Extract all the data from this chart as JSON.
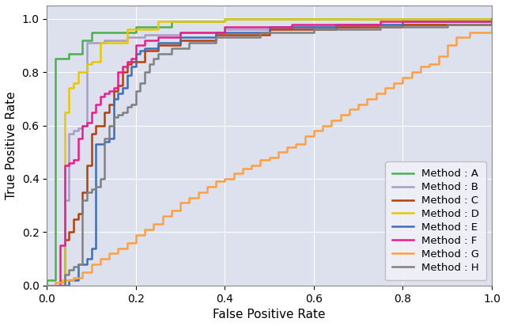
{
  "title": "",
  "xlabel": "False Positive Rate",
  "ylabel": "True Positive Rate",
  "xlim": [
    0.0,
    1.0
  ],
  "ylim": [
    0.0,
    1.05
  ],
  "background_color": "#dde1ee",
  "grid_color": "#ffffff",
  "methods": [
    {
      "label": "Method : A",
      "color": "#4CAF50",
      "linewidth": 1.8,
      "points": [
        [
          0.0,
          0.0
        ],
        [
          0.0,
          0.02
        ],
        [
          0.02,
          0.85
        ],
        [
          0.05,
          0.87
        ],
        [
          0.08,
          0.92
        ],
        [
          0.1,
          0.95
        ],
        [
          0.13,
          0.95
        ],
        [
          0.2,
          0.97
        ],
        [
          0.28,
          0.99
        ],
        [
          0.4,
          1.0
        ],
        [
          1.0,
          1.0
        ]
      ]
    },
    {
      "label": "Method : B",
      "color": "#A89CC8",
      "linewidth": 1.8,
      "points": [
        [
          0.0,
          0.0
        ],
        [
          0.04,
          0.32
        ],
        [
          0.05,
          0.57
        ],
        [
          0.06,
          0.58
        ],
        [
          0.07,
          0.59
        ],
        [
          0.08,
          0.6
        ],
        [
          0.09,
          0.91
        ],
        [
          0.1,
          0.91
        ],
        [
          0.13,
          0.92
        ],
        [
          0.18,
          0.93
        ],
        [
          0.22,
          0.94
        ],
        [
          0.3,
          0.95
        ],
        [
          0.4,
          0.96
        ],
        [
          0.55,
          0.97
        ],
        [
          0.7,
          0.98
        ],
        [
          1.0,
          1.0
        ]
      ]
    },
    {
      "label": "Method : C",
      "color": "#B5400A",
      "linewidth": 1.8,
      "points": [
        [
          0.0,
          0.0
        ],
        [
          0.04,
          0.17
        ],
        [
          0.05,
          0.2
        ],
        [
          0.06,
          0.25
        ],
        [
          0.07,
          0.27
        ],
        [
          0.08,
          0.35
        ],
        [
          0.09,
          0.45
        ],
        [
          0.1,
          0.57
        ],
        [
          0.11,
          0.6
        ],
        [
          0.13,
          0.65
        ],
        [
          0.14,
          0.68
        ],
        [
          0.15,
          0.73
        ],
        [
          0.16,
          0.75
        ],
        [
          0.17,
          0.8
        ],
        [
          0.18,
          0.83
        ],
        [
          0.19,
          0.84
        ],
        [
          0.2,
          0.84
        ],
        [
          0.22,
          0.88
        ],
        [
          0.25,
          0.9
        ],
        [
          0.3,
          0.92
        ],
        [
          0.38,
          0.94
        ],
        [
          0.5,
          0.96
        ],
        [
          0.65,
          0.97
        ],
        [
          0.8,
          0.98
        ],
        [
          1.0,
          1.0
        ]
      ]
    },
    {
      "label": "Method : D",
      "color": "#E8C800",
      "linewidth": 1.8,
      "points": [
        [
          0.0,
          0.0
        ],
        [
          0.03,
          0.02
        ],
        [
          0.04,
          0.65
        ],
        [
          0.05,
          0.74
        ],
        [
          0.06,
          0.76
        ],
        [
          0.07,
          0.8
        ],
        [
          0.09,
          0.83
        ],
        [
          0.1,
          0.84
        ],
        [
          0.12,
          0.91
        ],
        [
          0.13,
          0.91
        ],
        [
          0.18,
          0.96
        ],
        [
          0.25,
          0.99
        ],
        [
          0.4,
          1.0
        ],
        [
          1.0,
          1.0
        ]
      ]
    },
    {
      "label": "Method : E",
      "color": "#3B6FBC",
      "linewidth": 1.8,
      "points": [
        [
          0.0,
          0.0
        ],
        [
          0.05,
          0.02
        ],
        [
          0.07,
          0.08
        ],
        [
          0.09,
          0.1
        ],
        [
          0.1,
          0.14
        ],
        [
          0.11,
          0.53
        ],
        [
          0.13,
          0.54
        ],
        [
          0.14,
          0.55
        ],
        [
          0.15,
          0.7
        ],
        [
          0.16,
          0.72
        ],
        [
          0.17,
          0.74
        ],
        [
          0.18,
          0.79
        ],
        [
          0.19,
          0.82
        ],
        [
          0.2,
          0.87
        ],
        [
          0.21,
          0.88
        ],
        [
          0.22,
          0.89
        ],
        [
          0.25,
          0.91
        ],
        [
          0.3,
          0.93
        ],
        [
          0.38,
          0.95
        ],
        [
          0.5,
          0.97
        ],
        [
          0.65,
          0.98
        ],
        [
          0.8,
          0.99
        ],
        [
          1.0,
          1.0
        ]
      ]
    },
    {
      "label": "Method : F",
      "color": "#E91E8C",
      "linewidth": 1.8,
      "points": [
        [
          0.0,
          0.0
        ],
        [
          0.03,
          0.15
        ],
        [
          0.04,
          0.45
        ],
        [
          0.05,
          0.46
        ],
        [
          0.06,
          0.47
        ],
        [
          0.07,
          0.55
        ],
        [
          0.08,
          0.6
        ],
        [
          0.09,
          0.61
        ],
        [
          0.1,
          0.65
        ],
        [
          0.11,
          0.68
        ],
        [
          0.12,
          0.71
        ],
        [
          0.13,
          0.72
        ],
        [
          0.14,
          0.73
        ],
        [
          0.15,
          0.74
        ],
        [
          0.16,
          0.8
        ],
        [
          0.17,
          0.82
        ],
        [
          0.18,
          0.84
        ],
        [
          0.19,
          0.85
        ],
        [
          0.2,
          0.9
        ],
        [
          0.22,
          0.92
        ],
        [
          0.25,
          0.93
        ],
        [
          0.3,
          0.95
        ],
        [
          0.4,
          0.97
        ],
        [
          0.55,
          0.98
        ],
        [
          0.75,
          0.99
        ],
        [
          1.0,
          1.0
        ]
      ]
    },
    {
      "label": "Method : G",
      "color": "#FFA040",
      "linewidth": 1.8,
      "points": [
        [
          0.0,
          0.0
        ],
        [
          0.02,
          0.01
        ],
        [
          0.04,
          0.02
        ],
        [
          0.06,
          0.03
        ],
        [
          0.08,
          0.05
        ],
        [
          0.1,
          0.08
        ],
        [
          0.12,
          0.1
        ],
        [
          0.14,
          0.12
        ],
        [
          0.16,
          0.14
        ],
        [
          0.18,
          0.16
        ],
        [
          0.2,
          0.19
        ],
        [
          0.22,
          0.21
        ],
        [
          0.24,
          0.23
        ],
        [
          0.26,
          0.26
        ],
        [
          0.28,
          0.28
        ],
        [
          0.3,
          0.31
        ],
        [
          0.32,
          0.33
        ],
        [
          0.34,
          0.35
        ],
        [
          0.36,
          0.37
        ],
        [
          0.38,
          0.39
        ],
        [
          0.4,
          0.4
        ],
        [
          0.42,
          0.42
        ],
        [
          0.44,
          0.44
        ],
        [
          0.46,
          0.45
        ],
        [
          0.48,
          0.47
        ],
        [
          0.5,
          0.48
        ],
        [
          0.52,
          0.5
        ],
        [
          0.54,
          0.52
        ],
        [
          0.56,
          0.53
        ],
        [
          0.58,
          0.56
        ],
        [
          0.6,
          0.58
        ],
        [
          0.62,
          0.6
        ],
        [
          0.64,
          0.62
        ],
        [
          0.66,
          0.64
        ],
        [
          0.68,
          0.66
        ],
        [
          0.7,
          0.68
        ],
        [
          0.72,
          0.7
        ],
        [
          0.74,
          0.72
        ],
        [
          0.76,
          0.74
        ],
        [
          0.78,
          0.76
        ],
        [
          0.8,
          0.78
        ],
        [
          0.82,
          0.8
        ],
        [
          0.84,
          0.82
        ],
        [
          0.86,
          0.83
        ],
        [
          0.88,
          0.86
        ],
        [
          0.9,
          0.9
        ],
        [
          0.92,
          0.93
        ],
        [
          0.95,
          0.95
        ],
        [
          1.0,
          0.97
        ]
      ]
    },
    {
      "label": "Method : H",
      "color": "#808080",
      "linewidth": 1.8,
      "points": [
        [
          0.0,
          0.0
        ],
        [
          0.04,
          0.04
        ],
        [
          0.05,
          0.06
        ],
        [
          0.06,
          0.07
        ],
        [
          0.07,
          0.08
        ],
        [
          0.08,
          0.32
        ],
        [
          0.09,
          0.35
        ],
        [
          0.1,
          0.36
        ],
        [
          0.11,
          0.37
        ],
        [
          0.12,
          0.4
        ],
        [
          0.13,
          0.55
        ],
        [
          0.14,
          0.6
        ],
        [
          0.15,
          0.63
        ],
        [
          0.16,
          0.64
        ],
        [
          0.17,
          0.65
        ],
        [
          0.18,
          0.67
        ],
        [
          0.19,
          0.68
        ],
        [
          0.2,
          0.73
        ],
        [
          0.21,
          0.76
        ],
        [
          0.22,
          0.8
        ],
        [
          0.23,
          0.83
        ],
        [
          0.24,
          0.85
        ],
        [
          0.25,
          0.87
        ],
        [
          0.28,
          0.89
        ],
        [
          0.32,
          0.91
        ],
        [
          0.38,
          0.93
        ],
        [
          0.48,
          0.95
        ],
        [
          0.6,
          0.96
        ],
        [
          0.75,
          0.97
        ],
        [
          0.9,
          0.98
        ],
        [
          1.0,
          1.0
        ]
      ]
    }
  ],
  "legend_loc": "lower right",
  "legend_fontsize": 9.5,
  "tick_fontsize": 10,
  "label_fontsize": 11
}
